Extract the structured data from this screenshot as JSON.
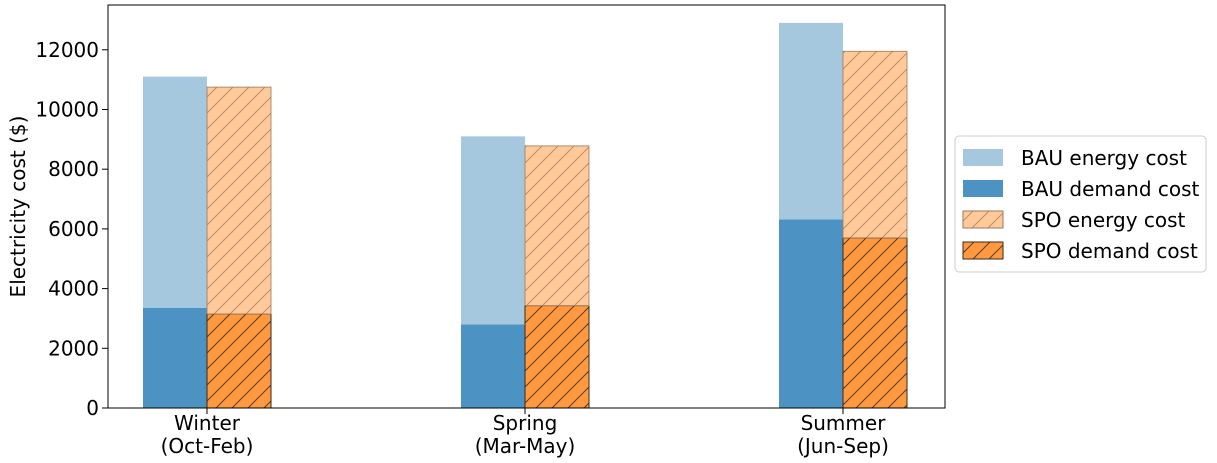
{
  "chart_data": {
    "type": "bar",
    "stacked": true,
    "grouped": true,
    "categories": [
      [
        "Winter",
        "(Oct-Feb)"
      ],
      [
        "Spring",
        "(Mar-May)"
      ],
      [
        "Summer",
        "(Jun-Sep)"
      ]
    ],
    "ylabel": "Electricity cost ($)",
    "xlabel": "",
    "title": "",
    "ylim": [
      0,
      13500
    ],
    "yticks": [
      0,
      2000,
      4000,
      6000,
      8000,
      10000,
      12000
    ],
    "grid": false,
    "legend_position": "right-outside",
    "groups": [
      {
        "name": "BAU",
        "hatched": false,
        "stack": [
          {
            "name": "BAU demand cost",
            "values": [
              3350,
              2800,
              6320
            ],
            "color": "#4c92c3"
          },
          {
            "name": "BAU energy cost",
            "values": [
              7750,
              6300,
              6580
            ],
            "color": "#a6c8df"
          }
        ]
      },
      {
        "name": "SPO",
        "hatched": true,
        "stack": [
          {
            "name": "SPO demand cost",
            "values": [
              3150,
              3430,
              5700
            ],
            "color": "#ff993f"
          },
          {
            "name": "SPO energy cost",
            "values": [
              7600,
              5350,
              6250
            ],
            "color": "#ffc99a"
          }
        ]
      }
    ],
    "legend": [
      {
        "label": "BAU energy cost",
        "color": "#a6c8df",
        "hatched": false
      },
      {
        "label": "BAU demand cost",
        "color": "#4c92c3",
        "hatched": false
      },
      {
        "label": "SPO energy cost",
        "color": "#ffc99a",
        "hatched": true
      },
      {
        "label": "SPO demand cost",
        "color": "#ff993f",
        "hatched": true
      }
    ]
  }
}
